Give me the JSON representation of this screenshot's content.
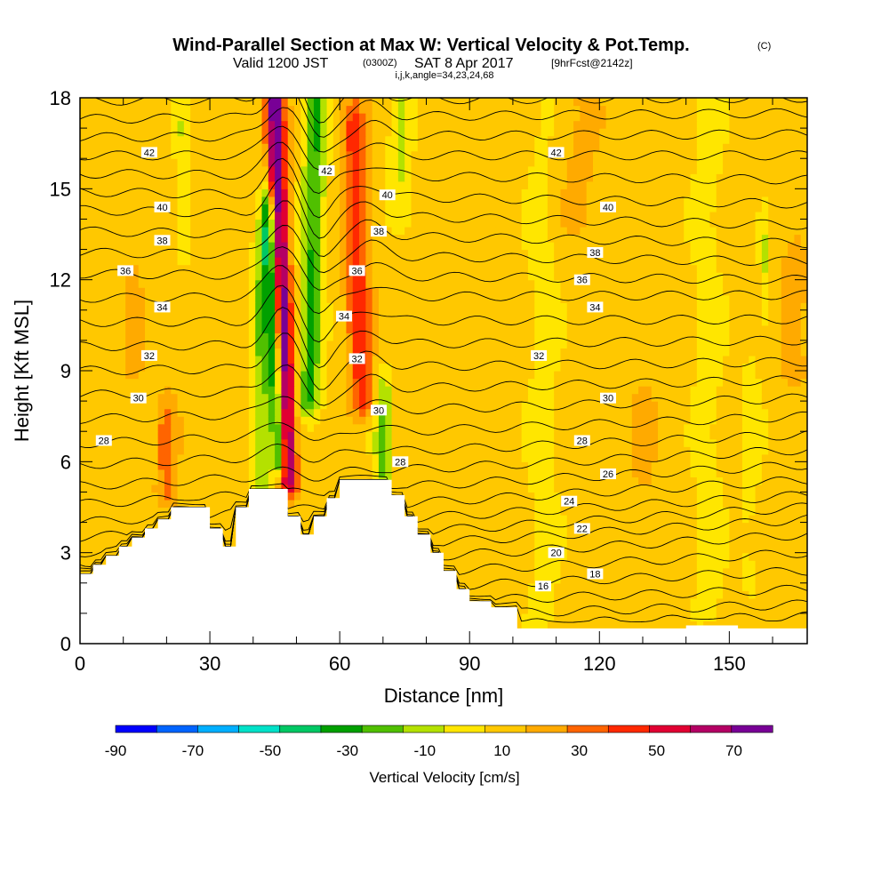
{
  "title": "Wind-Parallel Section at Max W: Vertical Velocity & Pot.Temp.",
  "copyright": "(C)",
  "subtitle_a": "Valid 1200 JST",
  "subtitle_b": "(0300Z)",
  "subtitle_c": "SAT 8 Apr 2017",
  "subtitle_d": "[9hrFcst@2142z]",
  "indices": "i,j,k,angle=34,23,24,68",
  "chart_data": {
    "type": "heatmap",
    "xlabel": "Distance [nm]",
    "ylabel": "Height [Kft MSL]",
    "xlim": [
      0,
      168
    ],
    "ylim": [
      0,
      18
    ],
    "x_ticks": [
      0,
      30,
      60,
      90,
      120,
      150
    ],
    "y_ticks": [
      0,
      3,
      6,
      9,
      12,
      15,
      18
    ],
    "colorbar": {
      "label": "Vertical Velocity [cm/s]",
      "tick_labels": [
        "-90",
        "-70",
        "-50",
        "-30",
        "-10",
        "10",
        "30",
        "50",
        "70"
      ],
      "tick_values": [
        -90,
        -70,
        -50,
        -30,
        -10,
        10,
        30,
        50,
        70
      ],
      "min": -90,
      "max": 70,
      "step": 10,
      "colors": [
        "#0000ff",
        "#0064ff",
        "#00afff",
        "#00e1c8",
        "#00c864",
        "#00a000",
        "#50c000",
        "#b4e100",
        "#ffe600",
        "#ffc800",
        "#ffaa00",
        "#ff6400",
        "#ff2800",
        "#e10032",
        "#b40064",
        "#780096"
      ]
    },
    "terrain": [
      [
        0,
        2.3
      ],
      [
        3,
        2.3
      ],
      [
        3,
        2.6
      ],
      [
        6,
        2.6
      ],
      [
        6,
        2.9
      ],
      [
        9,
        2.9
      ],
      [
        9,
        3.2
      ],
      [
        12,
        3.2
      ],
      [
        12,
        3.5
      ],
      [
        15,
        3.5
      ],
      [
        15,
        3.8
      ],
      [
        18,
        3.8
      ],
      [
        18,
        4.1
      ],
      [
        21,
        4.1
      ],
      [
        21,
        4.5
      ],
      [
        30,
        4.5
      ],
      [
        30,
        3.8
      ],
      [
        33,
        3.8
      ],
      [
        33,
        3.2
      ],
      [
        36,
        3.2
      ],
      [
        36,
        4.5
      ],
      [
        39,
        4.5
      ],
      [
        39,
        5.1
      ],
      [
        48,
        5.1
      ],
      [
        48,
        4.2
      ],
      [
        51,
        4.2
      ],
      [
        51,
        3.6
      ],
      [
        54,
        3.6
      ],
      [
        54,
        4.2
      ],
      [
        57,
        4.2
      ],
      [
        57,
        4.8
      ],
      [
        60,
        4.8
      ],
      [
        60,
        5.4
      ],
      [
        72,
        5.4
      ],
      [
        72,
        4.9
      ],
      [
        75,
        4.9
      ],
      [
        75,
        4.2
      ],
      [
        78,
        4.2
      ],
      [
        78,
        3.6
      ],
      [
        81,
        3.6
      ],
      [
        81,
        3.0
      ],
      [
        84,
        3.0
      ],
      [
        84,
        2.4
      ],
      [
        87,
        2.4
      ],
      [
        87,
        1.8
      ],
      [
        90,
        1.8
      ],
      [
        90,
        1.4
      ],
      [
        95,
        1.4
      ],
      [
        95,
        1.2
      ],
      [
        101,
        1.2
      ],
      [
        101,
        0.5
      ],
      [
        140,
        0.5
      ],
      [
        140,
        0.6
      ],
      [
        152,
        0.6
      ],
      [
        152,
        0.5
      ],
      [
        168,
        0.5
      ]
    ],
    "w_features": [
      {
        "x": 48,
        "y0": 5.5,
        "y1": 18,
        "dx": 2.2,
        "dxdy": -0.25,
        "amp": 65,
        "wx": 2.2,
        "wy": 5
      },
      {
        "x": 46,
        "y0": 6,
        "y1": 14,
        "dx": 1.5,
        "dxdy": -0.3,
        "amp": -55,
        "wx": 1.6,
        "wy": 3
      },
      {
        "x": 53,
        "y0": 8,
        "y1": 18,
        "dx": 2.5,
        "dxdy": 0.15,
        "amp": -35,
        "wx": 2.5,
        "wy": 4
      },
      {
        "x": 42,
        "y0": 5,
        "y1": 13,
        "dx": 2.0,
        "dxdy": 0,
        "amp": -25,
        "wx": 2.0,
        "wy": 3
      },
      {
        "x": 65,
        "y0": 8,
        "y1": 17,
        "dx": 3.0,
        "dxdy": -0.2,
        "amp": 30,
        "wx": 3.0,
        "wy": 4
      },
      {
        "x": 70,
        "y0": 5.5,
        "y1": 8,
        "dx": 2.0,
        "dxdy": 0,
        "amp": -25,
        "wx": 2.0,
        "wy": 1.5
      },
      {
        "x": 74,
        "y0": 14,
        "y1": 18,
        "dx": 2.0,
        "dxdy": 0,
        "amp": -15,
        "wx": 2.5,
        "wy": 2
      },
      {
        "x": 24,
        "y0": 13,
        "y1": 17,
        "dx": 1.8,
        "dxdy": 0,
        "amp": -14,
        "wx": 1.8,
        "wy": 2
      },
      {
        "x": 20,
        "y0": 5,
        "y1": 7,
        "dx": 2.0,
        "dxdy": 0,
        "amp": 20,
        "wx": 2.5,
        "wy": 1
      },
      {
        "x": 12,
        "y0": 9,
        "y1": 13,
        "dx": 4.0,
        "dxdy": 0,
        "amp": 7,
        "wx": 4.0,
        "wy": 3
      },
      {
        "x": 115,
        "y0": 14,
        "y1": 18,
        "dx": 6.0,
        "dxdy": 0,
        "amp": 8,
        "wx": 6.0,
        "wy": 3
      },
      {
        "x": 165,
        "y0": 9,
        "y1": 12,
        "dx": 3.0,
        "dxdy": 0,
        "amp": 14,
        "wx": 3.0,
        "wy": 2
      },
      {
        "x": 158,
        "y0": 11,
        "y1": 13,
        "dx": 1.0,
        "dxdy": 0,
        "amp": -15,
        "wx": 1.0,
        "wy": 1
      },
      {
        "x": 130,
        "y0": 2,
        "y1": 8,
        "dx": 6.0,
        "dxdy": 0,
        "amp": 6,
        "wx": 6.0,
        "wy": 3
      },
      {
        "x": 107,
        "y0": 1,
        "y1": 18,
        "dx": 4.0,
        "dxdy": 0,
        "amp": -7,
        "wx": 4.0,
        "wy": 4
      },
      {
        "x": 145,
        "y0": 1,
        "y1": 18,
        "dx": 4.0,
        "dxdy": 0,
        "amp": -7,
        "wx": 4.0,
        "wy": 4
      },
      {
        "x": 155,
        "y0": 2,
        "y1": 9,
        "dx": 3.0,
        "dxdy": 0,
        "amp": -6,
        "wx": 3.0,
        "wy": 3
      }
    ],
    "theta_contours": [
      {
        "value": 16,
        "left": 0.3,
        "right": 0.9
      },
      {
        "value": 17,
        "left": 0.6,
        "right": 1.3
      },
      {
        "value": 18,
        "left": 1.0,
        "right": 1.8
      },
      {
        "value": 19,
        "left": 1.4,
        "right": 2.4
      },
      {
        "value": 20,
        "left": 1.8,
        "right": 3.0
      },
      {
        "value": 21,
        "left": 2.2,
        "right": 3.6
      },
      {
        "value": 22,
        "left": 2.6,
        "right": 4.1
      },
      {
        "value": 23,
        "left": 3.0,
        "right": 4.5
      },
      {
        "value": 24,
        "left": 3.5,
        "right": 4.9
      },
      {
        "value": 25,
        "left": 4.0,
        "right": 5.4
      },
      {
        "value": 26,
        "left": 4.6,
        "right": 5.9
      },
      {
        "value": 27,
        "left": 5.2,
        "right": 6.4
      },
      {
        "value": 28,
        "left": 5.9,
        "right": 6.9
      },
      {
        "value": 29,
        "left": 6.6,
        "right": 7.5
      },
      {
        "value": 30,
        "left": 7.4,
        "right": 8.1
      },
      {
        "value": 31,
        "left": 8.2,
        "right": 8.7
      },
      {
        "value": 32,
        "left": 9.0,
        "right": 9.3
      },
      {
        "value": 33,
        "left": 9.8,
        "right": 10.0
      },
      {
        "value": 34,
        "left": 10.6,
        "right": 10.7
      },
      {
        "value": 35,
        "left": 11.4,
        "right": 11.5
      },
      {
        "value": 36,
        "left": 12.2,
        "right": 12.0
      },
      {
        "value": 37,
        "left": 12.9,
        "right": 12.6
      },
      {
        "value": 38,
        "left": 13.6,
        "right": 13.2
      },
      {
        "value": 39,
        "left": 14.3,
        "right": 13.8
      },
      {
        "value": 40,
        "left": 14.9,
        "right": 14.5
      },
      {
        "value": 41,
        "left": 15.5,
        "right": 15.3
      },
      {
        "value": 42,
        "left": 16.1,
        "right": 16.1
      },
      {
        "value": 43,
        "left": 16.7,
        "right": 16.8
      },
      {
        "value": 44,
        "left": 17.3,
        "right": 17.5
      },
      {
        "value": 45,
        "left": 17.9,
        "right": 18.0
      }
    ],
    "contour_labels": [
      {
        "text": "42",
        "x": 16,
        "y": 16.2
      },
      {
        "text": "40",
        "x": 19,
        "y": 14.4
      },
      {
        "text": "38",
        "x": 19,
        "y": 13.3
      },
      {
        "text": "36",
        "x": 10.5,
        "y": 12.3
      },
      {
        "text": "34",
        "x": 19,
        "y": 11.1
      },
      {
        "text": "32",
        "x": 16,
        "y": 9.5
      },
      {
        "text": "30",
        "x": 13.5,
        "y": 8.1
      },
      {
        "text": "28",
        "x": 5.5,
        "y": 6.7
      },
      {
        "text": "42",
        "x": 57,
        "y": 15.6
      },
      {
        "text": "40",
        "x": 71,
        "y": 14.8
      },
      {
        "text": "38",
        "x": 69,
        "y": 13.6
      },
      {
        "text": "36",
        "x": 64,
        "y": 12.3
      },
      {
        "text": "34",
        "x": 61,
        "y": 10.8
      },
      {
        "text": "32",
        "x": 64,
        "y": 9.4
      },
      {
        "text": "30",
        "x": 69,
        "y": 7.7
      },
      {
        "text": "28",
        "x": 74,
        "y": 6.0
      },
      {
        "text": "42",
        "x": 110,
        "y": 16.2
      },
      {
        "text": "40",
        "x": 122,
        "y": 14.4
      },
      {
        "text": "38",
        "x": 119,
        "y": 12.9
      },
      {
        "text": "36",
        "x": 116,
        "y": 12.0
      },
      {
        "text": "34",
        "x": 119,
        "y": 11.1
      },
      {
        "text": "32",
        "x": 106,
        "y": 9.5
      },
      {
        "text": "30",
        "x": 122,
        "y": 8.1
      },
      {
        "text": "28",
        "x": 116,
        "y": 6.7
      },
      {
        "text": "26",
        "x": 122,
        "y": 5.6
      },
      {
        "text": "24",
        "x": 113,
        "y": 4.7
      },
      {
        "text": "22",
        "x": 116,
        "y": 3.8
      },
      {
        "text": "20",
        "x": 110,
        "y": 3.0
      },
      {
        "text": "18",
        "x": 119,
        "y": 2.3
      },
      {
        "text": "16",
        "x": 107,
        "y": 1.9
      }
    ]
  }
}
